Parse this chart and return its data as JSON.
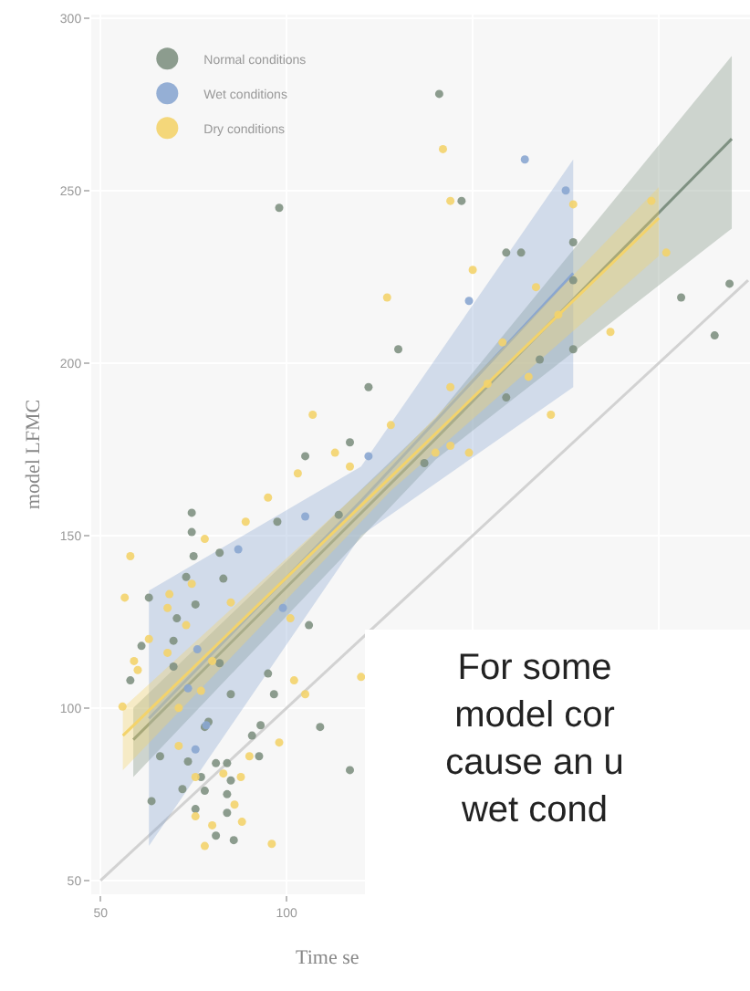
{
  "chart_data": {
    "type": "scatter",
    "xlabel": "Time se",
    "ylabel": "model LFMC",
    "xlim": [
      47.5,
      224.5
    ],
    "ylim": [
      46,
      301
    ],
    "xticks": [
      50,
      100,
      {
        "value": 150,
        "label": null
      },
      {
        "value": 200,
        "label": null
      }
    ],
    "yticks": [
      50,
      100,
      150,
      200,
      250,
      300
    ],
    "grid": true,
    "legend": "top left",
    "marker": "circle",
    "annotations": [
      "For some\nmodel cor\ncause an u\nwet cond"
    ],
    "series": [
      {
        "type": "line",
        "marker": "none",
        "color": "#d2d2d2",
        "x": [
          50,
          224
        ],
        "values": [
          50,
          224
        ]
      },
      {
        "type": "line",
        "marker": "none",
        "color": "#7f9182",
        "x": [
          58.8,
          140,
          219.6
        ],
        "values": [
          90.8,
          178,
          265
        ],
        "lower": [
          80,
          172,
          239
        ],
        "upper": [
          100,
          184,
          289
        ]
      },
      {
        "type": "line",
        "marker": "none",
        "color": "#8aa6d0",
        "x": [
          63,
          120,
          177
        ],
        "values": [
          97,
          160,
          226
        ],
        "lower": [
          60,
          150,
          193
        ],
        "upper": [
          134,
          170,
          259
        ]
      },
      {
        "type": "line",
        "marker": "none",
        "color": "#f3d36b",
        "x": [
          56,
          128,
          200
        ],
        "values": [
          92,
          167,
          242
        ],
        "lower": [
          82,
          163,
          231
        ],
        "upper": [
          100,
          171,
          251
        ]
      },
      {
        "name": "Normal conditions",
        "color": "#7f9182",
        "x": [
          98,
          122,
          117,
          105,
          141,
          147,
          159,
          163,
          177,
          177,
          206,
          219,
          215,
          130,
          168,
          177,
          159,
          137,
          74.5,
          74.5,
          75,
          82,
          97.5,
          114,
          63,
          73,
          70.5,
          75.5,
          83,
          106,
          61,
          69.6,
          82,
          69.6,
          58,
          85,
          95,
          96.6,
          79,
          78,
          66,
          93,
          90.7,
          92.6,
          109,
          117,
          73.5,
          81,
          84,
          77,
          85,
          72,
          78,
          84,
          63.7,
          75.5,
          84,
          81,
          85.8
        ],
        "values": [
          245,
          193,
          177,
          173,
          278,
          247,
          232,
          232,
          235,
          224,
          219,
          223,
          208,
          204,
          201,
          204,
          190,
          171,
          156.6,
          151,
          144,
          145,
          154,
          156,
          132,
          138,
          126,
          130,
          137.5,
          124,
          118,
          119.5,
          113,
          112,
          108,
          104,
          110,
          104,
          96,
          94.5,
          86,
          95,
          92,
          86,
          94.5,
          82,
          84.5,
          84,
          84,
          80,
          79,
          76.5,
          76,
          75,
          73,
          70.7,
          69.6,
          63,
          61.7
        ]
      },
      {
        "name": "Wet conditions",
        "color": "#8aa6d0",
        "x": [
          122,
          164,
          175,
          149,
          87,
          105,
          99,
          76,
          73.5,
          75.5,
          78.4
        ],
        "values": [
          173,
          259,
          250,
          218,
          146,
          155.5,
          129,
          117,
          105.7,
          88,
          95
        ]
      },
      {
        "name": "Dry conditions",
        "color": "#f3d36b",
        "x": [
          107,
          113,
          103,
          117,
          142,
          144,
          177,
          150,
          127,
          167,
          173,
          187,
          158,
          144,
          165,
          154,
          171,
          144,
          140,
          149,
          128,
          198,
          202,
          58,
          78,
          95,
          89,
          56.5,
          68.5,
          74.5,
          68,
          73,
          85,
          101,
          63,
          68,
          59,
          60,
          80,
          71,
          55.9,
          77,
          105,
          102,
          71,
          90,
          98,
          83,
          75.5,
          87.7,
          86,
          75.5,
          88,
          80,
          78,
          96,
          120
        ],
        "values": [
          185,
          174,
          168,
          170,
          262,
          247,
          246,
          227,
          219,
          222,
          214,
          209,
          206,
          193,
          196,
          194,
          185,
          176,
          174,
          174,
          182,
          247,
          232,
          144,
          149,
          161,
          154,
          132,
          133,
          136,
          129,
          124,
          130.6,
          126,
          120,
          116,
          113.6,
          111,
          113.6,
          100,
          100.4,
          105,
          104,
          108,
          89,
          86,
          90,
          81,
          80,
          80,
          72,
          68.6,
          67,
          66,
          60,
          60.6,
          109
        ]
      }
    ]
  }
}
